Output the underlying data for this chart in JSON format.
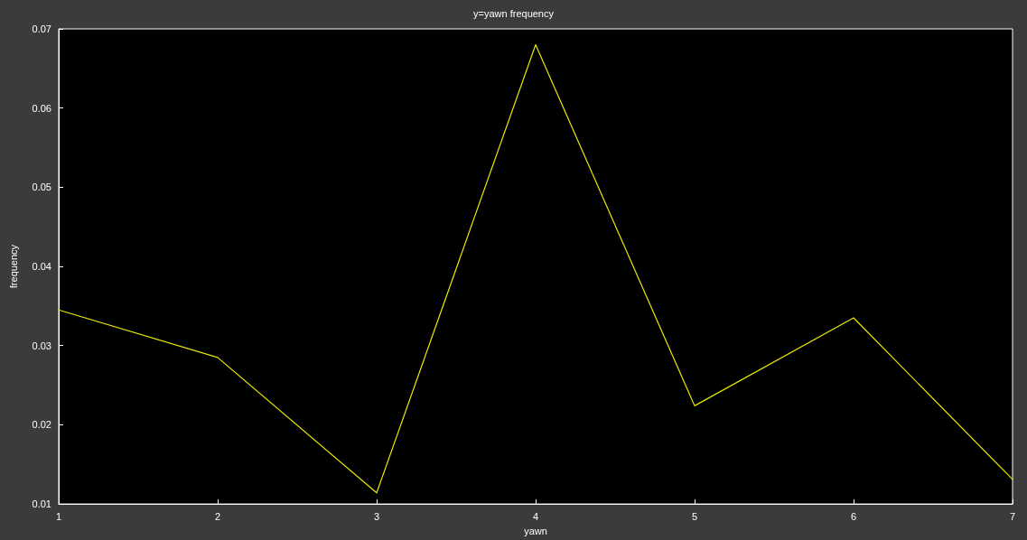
{
  "chart_data": {
    "type": "line",
    "title": "y=yawn frequency",
    "xlabel": "yawn",
    "ylabel": "frequency",
    "x": [
      1,
      2,
      3,
      4,
      5,
      6,
      7
    ],
    "series": [
      {
        "color": "#e8e800",
        "values": [
          0.0345,
          0.0285,
          0.0114,
          0.068,
          0.0224,
          0.0335,
          0.0131
        ]
      }
    ],
    "xlim": [
      1,
      7
    ],
    "xticks": [
      1,
      2,
      3,
      4,
      5,
      6,
      7
    ],
    "ylim": [
      0.01,
      0.07
    ],
    "yticks": [
      0.01,
      0.02,
      0.03,
      0.04,
      0.05,
      0.06,
      0.07
    ],
    "grid": false,
    "marker": "none",
    "line_style": "solid"
  }
}
